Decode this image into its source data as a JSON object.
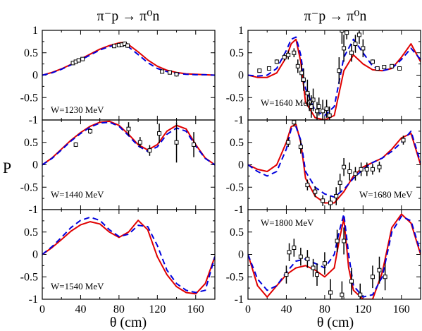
{
  "titles": [
    "π⁻p → π⁰n",
    "π⁻p → π⁰n"
  ],
  "ylabel": "P",
  "xlabels": [
    "θ (cm)",
    "θ (cm)"
  ],
  "colors": {
    "solid": "#e00000",
    "dashed": "#0000dd",
    "points": "#000000"
  },
  "chart_data": {
    "type": "line",
    "x_ticks": [
      0,
      40,
      80,
      120,
      160
    ],
    "y_ticks": [
      "-1",
      "-0.5",
      "0",
      "0.5",
      "1"
    ],
    "xlim": [
      0,
      180
    ],
    "ylim": [
      -1,
      1
    ],
    "panels": [
      {
        "label": "W=1230 MeV",
        "x": [
          0,
          10,
          20,
          30,
          40,
          50,
          60,
          70,
          80,
          85,
          90,
          100,
          110,
          120,
          130,
          140,
          150,
          160,
          170,
          180
        ],
        "series": [
          {
            "style": "solid",
            "values": [
              0,
              0.06,
              0.14,
              0.24,
              0.36,
              0.47,
              0.58,
              0.66,
              0.72,
              0.73,
              0.68,
              0.52,
              0.34,
              0.2,
              0.11,
              0.06,
              0.03,
              0.02,
              0.01,
              0
            ]
          },
          {
            "style": "dashed",
            "values": [
              0,
              0.05,
              0.13,
              0.23,
              0.34,
              0.45,
              0.56,
              0.64,
              0.68,
              0.69,
              0.63,
              0.46,
              0.28,
              0.15,
              0.08,
              0.04,
              0.02,
              0.01,
              0.01,
              0
            ]
          }
        ],
        "points": [
          {
            "x": 32,
            "y": 0.27,
            "err": 0.03
          },
          {
            "x": 35,
            "y": 0.3,
            "err": 0.03
          },
          {
            "x": 38,
            "y": 0.33,
            "err": 0.03
          },
          {
            "x": 42,
            "y": 0.36,
            "err": 0.03
          },
          {
            "x": 75,
            "y": 0.65,
            "err": 0.04
          },
          {
            "x": 80,
            "y": 0.67,
            "err": 0.04
          },
          {
            "x": 83,
            "y": 0.68,
            "err": 0.05
          },
          {
            "x": 86,
            "y": 0.7,
            "err": 0.05
          },
          {
            "x": 89,
            "y": 0.66,
            "err": 0.05
          },
          {
            "x": 125,
            "y": 0.08,
            "err": 0.04
          },
          {
            "x": 133,
            "y": 0.06,
            "err": 0.04
          },
          {
            "x": 140,
            "y": 0.02,
            "err": 0.05
          }
        ]
      },
      {
        "label": "W=1440 MeV",
        "x": [
          0,
          10,
          20,
          30,
          40,
          50,
          60,
          70,
          80,
          90,
          100,
          110,
          120,
          130,
          140,
          150,
          160,
          170,
          180
        ],
        "series": [
          {
            "style": "solid",
            "values": [
              0,
              0.15,
              0.35,
              0.55,
              0.72,
              0.86,
              0.95,
              0.97,
              0.88,
              0.68,
              0.45,
              0.33,
              0.45,
              0.75,
              0.88,
              0.8,
              0.45,
              0.15,
              0
            ]
          },
          {
            "style": "dashed",
            "values": [
              0,
              0.14,
              0.33,
              0.53,
              0.7,
              0.84,
              0.93,
              0.95,
              0.86,
              0.65,
              0.42,
              0.3,
              0.4,
              0.68,
              0.82,
              0.75,
              0.42,
              0.14,
              0
            ]
          }
        ],
        "points": [
          {
            "x": 35,
            "y": 0.45,
            "err": 0.05
          },
          {
            "x": 50,
            "y": 0.75,
            "err": 0.06
          },
          {
            "x": 90,
            "y": 0.8,
            "err": 0.15
          },
          {
            "x": 102,
            "y": 0.5,
            "err": 0.12
          },
          {
            "x": 112,
            "y": 0.32,
            "err": 0.12
          },
          {
            "x": 122,
            "y": 0.7,
            "err": 0.22
          },
          {
            "x": 140,
            "y": 0.5,
            "err": 0.45
          },
          {
            "x": 158,
            "y": 0.45,
            "err": 0.28
          }
        ]
      },
      {
        "label": "W=1540 MeV",
        "x": [
          0,
          10,
          20,
          30,
          40,
          50,
          60,
          70,
          80,
          90,
          100,
          110,
          120,
          130,
          140,
          150,
          160,
          170,
          180
        ],
        "series": [
          {
            "style": "solid",
            "values": [
              0,
              0.15,
              0.33,
              0.52,
              0.66,
              0.73,
              0.68,
              0.5,
              0.38,
              0.5,
              0.76,
              0.55,
              -0.05,
              -0.45,
              -0.72,
              -0.85,
              -0.88,
              -0.65,
              -0.05
            ]
          },
          {
            "style": "dashed",
            "values": [
              0,
              0.17,
              0.38,
              0.6,
              0.76,
              0.83,
              0.76,
              0.55,
              0.4,
              0.45,
              0.65,
              0.62,
              0.2,
              -0.35,
              -0.65,
              -0.8,
              -0.85,
              -0.8,
              -0.05
            ]
          }
        ],
        "points": []
      },
      {
        "label": "W=1640 MeV",
        "x": [
          0,
          10,
          20,
          30,
          40,
          45,
          50,
          55,
          60,
          70,
          80,
          90,
          100,
          110,
          120,
          130,
          140,
          150,
          160,
          170,
          180
        ],
        "series": [
          {
            "style": "solid",
            "values": [
              0,
              -0.05,
              -0.05,
              0.05,
              0.4,
              0.7,
              0.8,
              0.3,
              -0.6,
              -0.95,
              -1.0,
              -0.9,
              0.1,
              0.45,
              0.25,
              0.12,
              0.1,
              0.15,
              0.4,
              0.7,
              0.3
            ]
          },
          {
            "style": "dashed",
            "values": [
              0,
              -0.02,
              0.0,
              0.15,
              0.55,
              0.8,
              0.85,
              0.45,
              -0.3,
              -0.8,
              -0.9,
              -0.7,
              0.4,
              0.8,
              0.5,
              0.2,
              0.1,
              0.15,
              0.35,
              0.6,
              0.35
            ]
          }
        ],
        "points": [
          {
            "x": 12,
            "y": 0.1,
            "err": 0.04
          },
          {
            "x": 22,
            "y": 0.15,
            "err": 0.04
          },
          {
            "x": 30,
            "y": 0.3,
            "err": 0.05
          },
          {
            "x": 38,
            "y": 0.4,
            "err": 0.08
          },
          {
            "x": 42,
            "y": 0.45,
            "err": 0.1
          },
          {
            "x": 48,
            "y": 0.5,
            "err": 0.1
          },
          {
            "x": 52,
            "y": 0.2,
            "err": 0.15
          },
          {
            "x": 56,
            "y": 0.05,
            "err": 0.2
          },
          {
            "x": 58,
            "y": -0.1,
            "err": 0.25
          },
          {
            "x": 62,
            "y": -0.4,
            "err": 0.3
          },
          {
            "x": 64,
            "y": -0.6,
            "err": 0.2
          },
          {
            "x": 66,
            "y": -0.7,
            "err": 0.25
          },
          {
            "x": 68,
            "y": -0.55,
            "err": 0.25
          },
          {
            "x": 72,
            "y": -0.8,
            "err": 0.2
          },
          {
            "x": 74,
            "y": -0.7,
            "err": 0.2
          },
          {
            "x": 78,
            "y": -0.8,
            "err": 0.25
          },
          {
            "x": 82,
            "y": -0.75,
            "err": 0.2
          },
          {
            "x": 85,
            "y": -0.9,
            "err": 0.2
          },
          {
            "x": 95,
            "y": 0.1,
            "err": 0.3
          },
          {
            "x": 98,
            "y": 1.0,
            "err": 0.3
          },
          {
            "x": 100,
            "y": 0.6,
            "err": 0.3
          },
          {
            "x": 103,
            "y": 0.95,
            "err": 0.15
          },
          {
            "x": 108,
            "y": 0.5,
            "err": 0.2
          },
          {
            "x": 112,
            "y": 0.7,
            "err": 0.2
          },
          {
            "x": 116,
            "y": 0.9,
            "err": 0.2
          },
          {
            "x": 120,
            "y": 0.6,
            "err": 0.2
          },
          {
            "x": 130,
            "y": 0.3,
            "err": 0.05
          },
          {
            "x": 135,
            "y": 0.15,
            "err": 0.04
          },
          {
            "x": 142,
            "y": 0.18,
            "err": 0.04
          },
          {
            "x": 150,
            "y": 0.2,
            "err": 0.04
          },
          {
            "x": 158,
            "y": 0.15,
            "err": 0.04
          }
        ]
      },
      {
        "label": "W=1680 MeV",
        "x": [
          0,
          10,
          20,
          30,
          40,
          45,
          50,
          55,
          60,
          70,
          80,
          90,
          100,
          110,
          120,
          130,
          140,
          150,
          160,
          170,
          180
        ],
        "series": [
          {
            "style": "solid",
            "values": [
              0,
              -0.1,
              -0.15,
              0.0,
              0.5,
              0.85,
              0.9,
              0.5,
              -0.3,
              -0.7,
              -0.85,
              -0.85,
              -0.6,
              -0.25,
              -0.05,
              0.05,
              0.15,
              0.35,
              0.6,
              0.7,
              0.0
            ]
          },
          {
            "style": "dashed",
            "values": [
              0,
              -0.15,
              -0.25,
              -0.15,
              0.35,
              0.8,
              0.85,
              0.55,
              -0.15,
              -0.5,
              -0.65,
              -0.72,
              -0.55,
              -0.3,
              -0.1,
              0.05,
              0.15,
              0.3,
              0.5,
              0.75,
              0.05
            ]
          }
        ],
        "points": [
          {
            "x": 42,
            "y": 0.5,
            "err": 0.1
          },
          {
            "x": 48,
            "y": 0.95,
            "err": 0.1
          },
          {
            "x": 55,
            "y": 0.4,
            "err": 0.15
          },
          {
            "x": 62,
            "y": -0.45,
            "err": 0.12
          },
          {
            "x": 70,
            "y": -0.6,
            "err": 0.12
          },
          {
            "x": 78,
            "y": -0.8,
            "err": 0.12
          },
          {
            "x": 86,
            "y": -0.85,
            "err": 0.15
          },
          {
            "x": 92,
            "y": -0.7,
            "err": 0.2
          },
          {
            "x": 96,
            "y": -0.4,
            "err": 0.2
          },
          {
            "x": 100,
            "y": -0.05,
            "err": 0.2
          },
          {
            "x": 106,
            "y": -0.15,
            "err": 0.2
          },
          {
            "x": 112,
            "y": -0.2,
            "err": 0.15
          },
          {
            "x": 118,
            "y": -0.1,
            "err": 0.15
          },
          {
            "x": 124,
            "y": -0.1,
            "err": 0.15
          },
          {
            "x": 130,
            "y": -0.1,
            "err": 0.12
          },
          {
            "x": 137,
            "y": -0.05,
            "err": 0.12
          },
          {
            "x": 162,
            "y": 0.55,
            "err": 0.1
          }
        ]
      },
      {
        "label": "W=1800 MeV",
        "x": [
          0,
          10,
          20,
          30,
          40,
          50,
          60,
          70,
          80,
          90,
          95,
          100,
          105,
          110,
          120,
          130,
          140,
          150,
          160,
          170,
          180
        ],
        "series": [
          {
            "style": "solid",
            "values": [
              0,
              -0.7,
              -0.95,
              -0.7,
              -0.45,
              -0.3,
              -0.25,
              -0.35,
              -0.5,
              -0.3,
              0.3,
              0.8,
              -0.3,
              -0.8,
              -1.0,
              -1.0,
              -0.4,
              0.6,
              0.9,
              0.7,
              0.0
            ]
          },
          {
            "style": "dashed",
            "values": [
              0,
              -0.55,
              -0.8,
              -0.7,
              -0.4,
              -0.15,
              -0.1,
              -0.2,
              -0.3,
              0.0,
              0.5,
              0.9,
              0.0,
              -0.7,
              -0.95,
              -0.9,
              -0.5,
              0.5,
              0.85,
              0.75,
              0.05
            ]
          }
        ],
        "points": [
          {
            "x": 40,
            "y": -0.45,
            "err": 0.2
          },
          {
            "x": 43,
            "y": 0.05,
            "err": 0.2
          },
          {
            "x": 48,
            "y": 0.15,
            "err": 0.2
          },
          {
            "x": 55,
            "y": -0.05,
            "err": 0.2
          },
          {
            "x": 62,
            "y": -0.1,
            "err": 0.2
          },
          {
            "x": 68,
            "y": -0.3,
            "err": 0.2
          },
          {
            "x": 72,
            "y": -0.45,
            "err": 0.25
          },
          {
            "x": 80,
            "y": -0.2,
            "err": 0.25
          },
          {
            "x": 86,
            "y": -0.85,
            "err": 0.3
          },
          {
            "x": 93,
            "y": 0.3,
            "err": 0.25
          },
          {
            "x": 98,
            "y": -0.9,
            "err": 0.3
          },
          {
            "x": 100,
            "y": 0.3,
            "err": 0.3
          },
          {
            "x": 108,
            "y": -0.6,
            "err": 0.3
          },
          {
            "x": 117,
            "y": -0.9,
            "err": 0.25
          },
          {
            "x": 130,
            "y": -0.5,
            "err": 0.25
          },
          {
            "x": 137,
            "y": -0.35,
            "err": 0.3
          },
          {
            "x": 143,
            "y": -0.5,
            "err": 0.3
          }
        ]
      }
    ]
  }
}
